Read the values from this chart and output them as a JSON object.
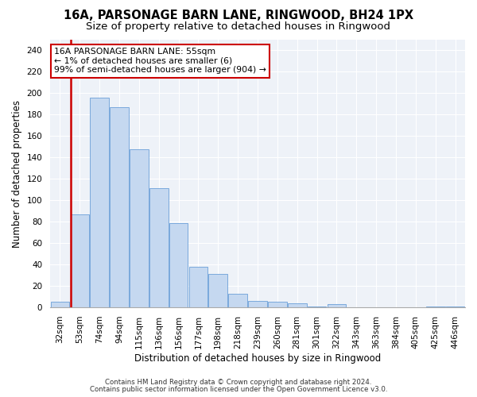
{
  "title1": "16A, PARSONAGE BARN LANE, RINGWOOD, BH24 1PX",
  "title2": "Size of property relative to detached houses in Ringwood",
  "xlabel": "Distribution of detached houses by size in Ringwood",
  "ylabel": "Number of detached properties",
  "categories": [
    "32sqm",
    "53sqm",
    "74sqm",
    "94sqm",
    "115sqm",
    "136sqm",
    "156sqm",
    "177sqm",
    "198sqm",
    "218sqm",
    "239sqm",
    "260sqm",
    "281sqm",
    "301sqm",
    "322sqm",
    "343sqm",
    "363sqm",
    "384sqm",
    "405sqm",
    "425sqm",
    "446sqm"
  ],
  "values": [
    5,
    87,
    196,
    187,
    148,
    111,
    79,
    38,
    31,
    13,
    6,
    5,
    4,
    1,
    3,
    0,
    0,
    0,
    0,
    1,
    1
  ],
  "bar_color": "#c5d8f0",
  "bar_edge_color": "#6a9fd8",
  "highlight_bar_index": 1,
  "highlight_color": "#cc0000",
  "annotation_text": "16A PARSONAGE BARN LANE: 55sqm\n← 1% of detached houses are smaller (6)\n99% of semi-detached houses are larger (904) →",
  "annotation_box_color": "#ffffff",
  "annotation_box_edge_color": "#cc0000",
  "ylim": [
    0,
    250
  ],
  "yticks": [
    0,
    20,
    40,
    60,
    80,
    100,
    120,
    140,
    160,
    180,
    200,
    220,
    240
  ],
  "footer1": "Contains HM Land Registry data © Crown copyright and database right 2024.",
  "footer2": "Contains public sector information licensed under the Open Government Licence v3.0.",
  "bg_color": "#ffffff",
  "plot_bg_color": "#eef2f8",
  "title1_fontsize": 10.5,
  "title2_fontsize": 9.5,
  "tick_fontsize": 7.5,
  "label_fontsize": 8.5,
  "footer_fontsize": 6.2
}
